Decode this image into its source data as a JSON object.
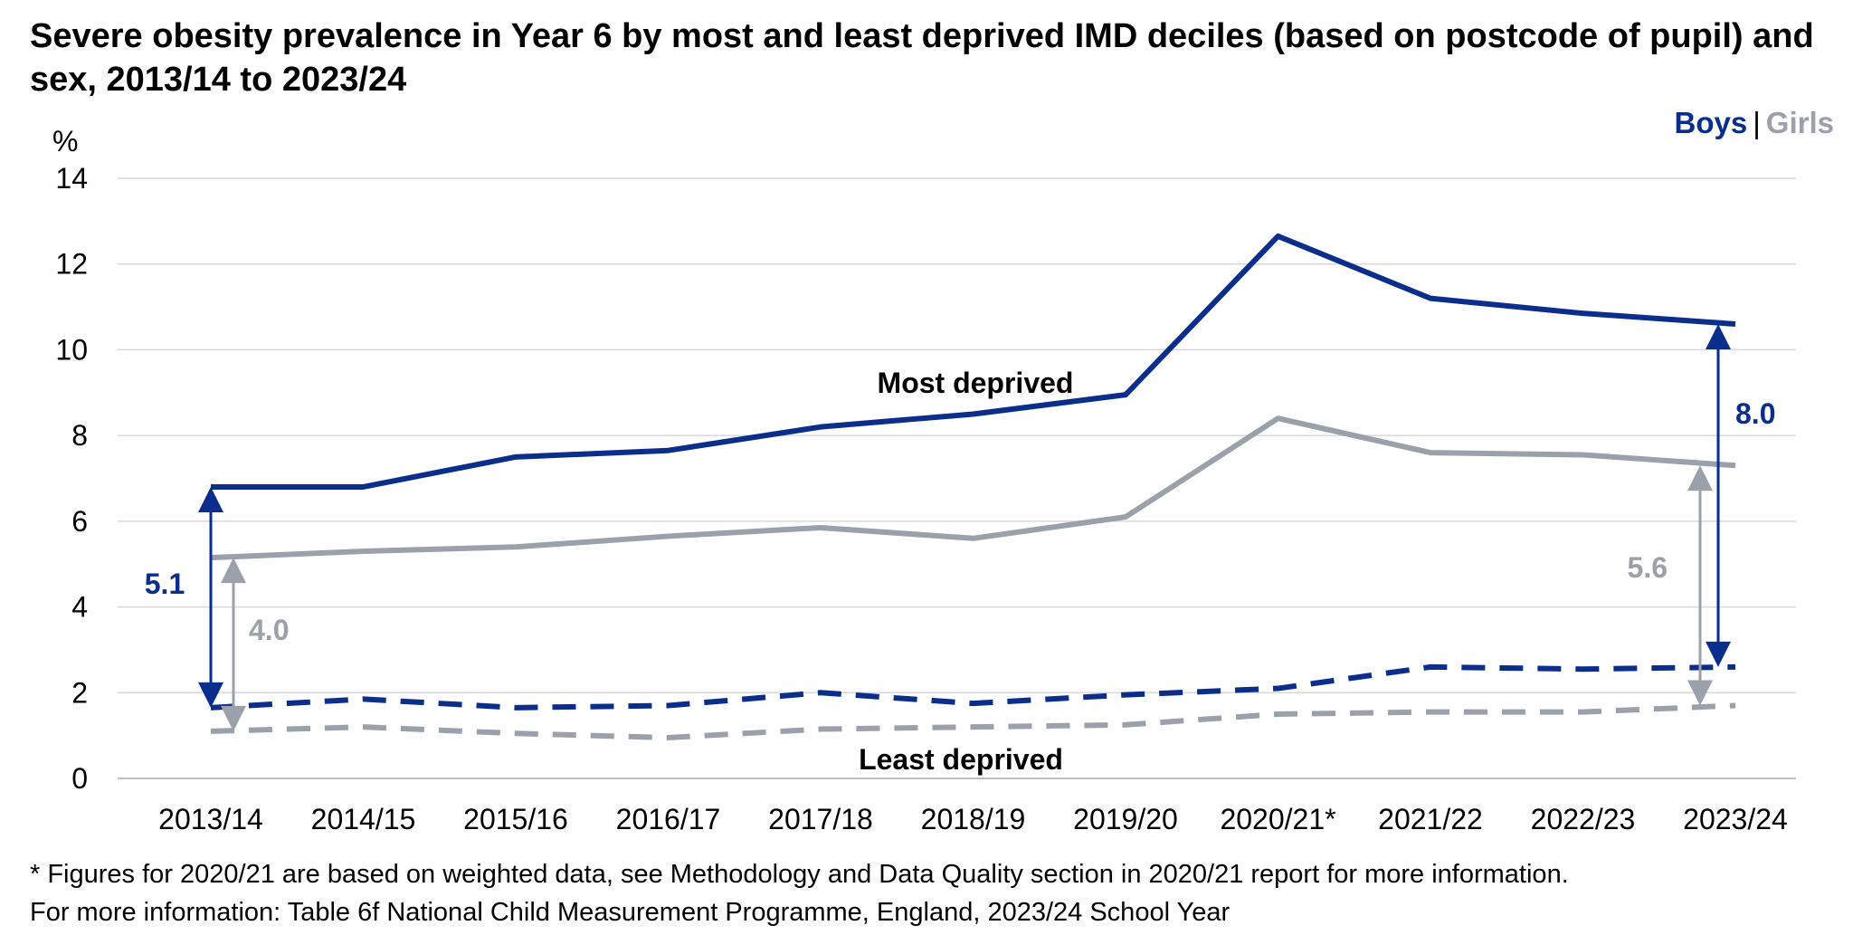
{
  "title": "Severe obesity prevalence in Year 6 by most and least deprived IMD deciles (based on postcode of pupil) and sex, 2013/14 to 2023/24",
  "legend": {
    "boys": "Boys",
    "separator": "|",
    "girls": "Girls"
  },
  "footnotes": [
    "* Figures for 2020/21 are based on weighted data, see Methodology and Data Quality section in 2020/21 report for more information.",
    "For more information: Table 6f National Child Measurement Programme, England, 2023/24 School Year"
  ],
  "colors": {
    "boys": "#0b2d8c",
    "girls": "#9aa1aa",
    "grid": "#d9d9d9",
    "axis": "#bfbfbf"
  },
  "chart_data": {
    "type": "line",
    "ylabel": "%",
    "xlabel": "",
    "ylim": [
      0,
      14
    ],
    "yticks": [
      0,
      2,
      4,
      6,
      8,
      10,
      12,
      14
    ],
    "grid": true,
    "legend_position": "top-right",
    "categories": [
      "2013/14",
      "2014/15",
      "2015/16",
      "2016/17",
      "2017/18",
      "2018/19",
      "2019/20",
      "2020/21*",
      "2021/22",
      "2022/23",
      "2023/24"
    ],
    "series": [
      {
        "group": "Most deprived",
        "sex": "Boys",
        "style": "solid",
        "color": "#0b2d8c",
        "values": [
          6.8,
          6.8,
          7.5,
          7.65,
          8.2,
          8.5,
          8.95,
          12.65,
          11.2,
          10.85,
          10.6
        ]
      },
      {
        "group": "Most deprived",
        "sex": "Girls",
        "style": "solid",
        "color": "#9aa1aa",
        "values": [
          5.15,
          5.3,
          5.4,
          5.65,
          5.85,
          5.6,
          6.1,
          8.4,
          7.6,
          7.55,
          7.3
        ]
      },
      {
        "group": "Least deprived",
        "sex": "Boys",
        "style": "dashed",
        "color": "#0b2d8c",
        "values": [
          1.65,
          1.85,
          1.65,
          1.7,
          2.0,
          1.75,
          1.95,
          2.1,
          2.6,
          2.55,
          2.6
        ]
      },
      {
        "group": "Least deprived",
        "sex": "Girls",
        "style": "dashed",
        "color": "#9aa1aa",
        "values": [
          1.1,
          1.2,
          1.05,
          0.95,
          1.15,
          1.2,
          1.25,
          1.5,
          1.55,
          1.55,
          1.7
        ]
      }
    ],
    "annotations": {
      "most_deprived_label": "Most deprived",
      "least_deprived_label": "Least deprived",
      "gaps": [
        {
          "category": "2013/14",
          "sex": "Boys",
          "label": "5.1",
          "from": 1.65,
          "to": 6.8
        },
        {
          "category": "2013/14",
          "sex": "Girls",
          "label": "4.0",
          "from": 1.1,
          "to": 5.15
        },
        {
          "category": "2023/24",
          "sex": "Boys",
          "label": "8.0",
          "from": 2.6,
          "to": 10.6
        },
        {
          "category": "2023/24",
          "sex": "Girls",
          "label": "5.6",
          "from": 1.7,
          "to": 7.3
        }
      ]
    }
  }
}
